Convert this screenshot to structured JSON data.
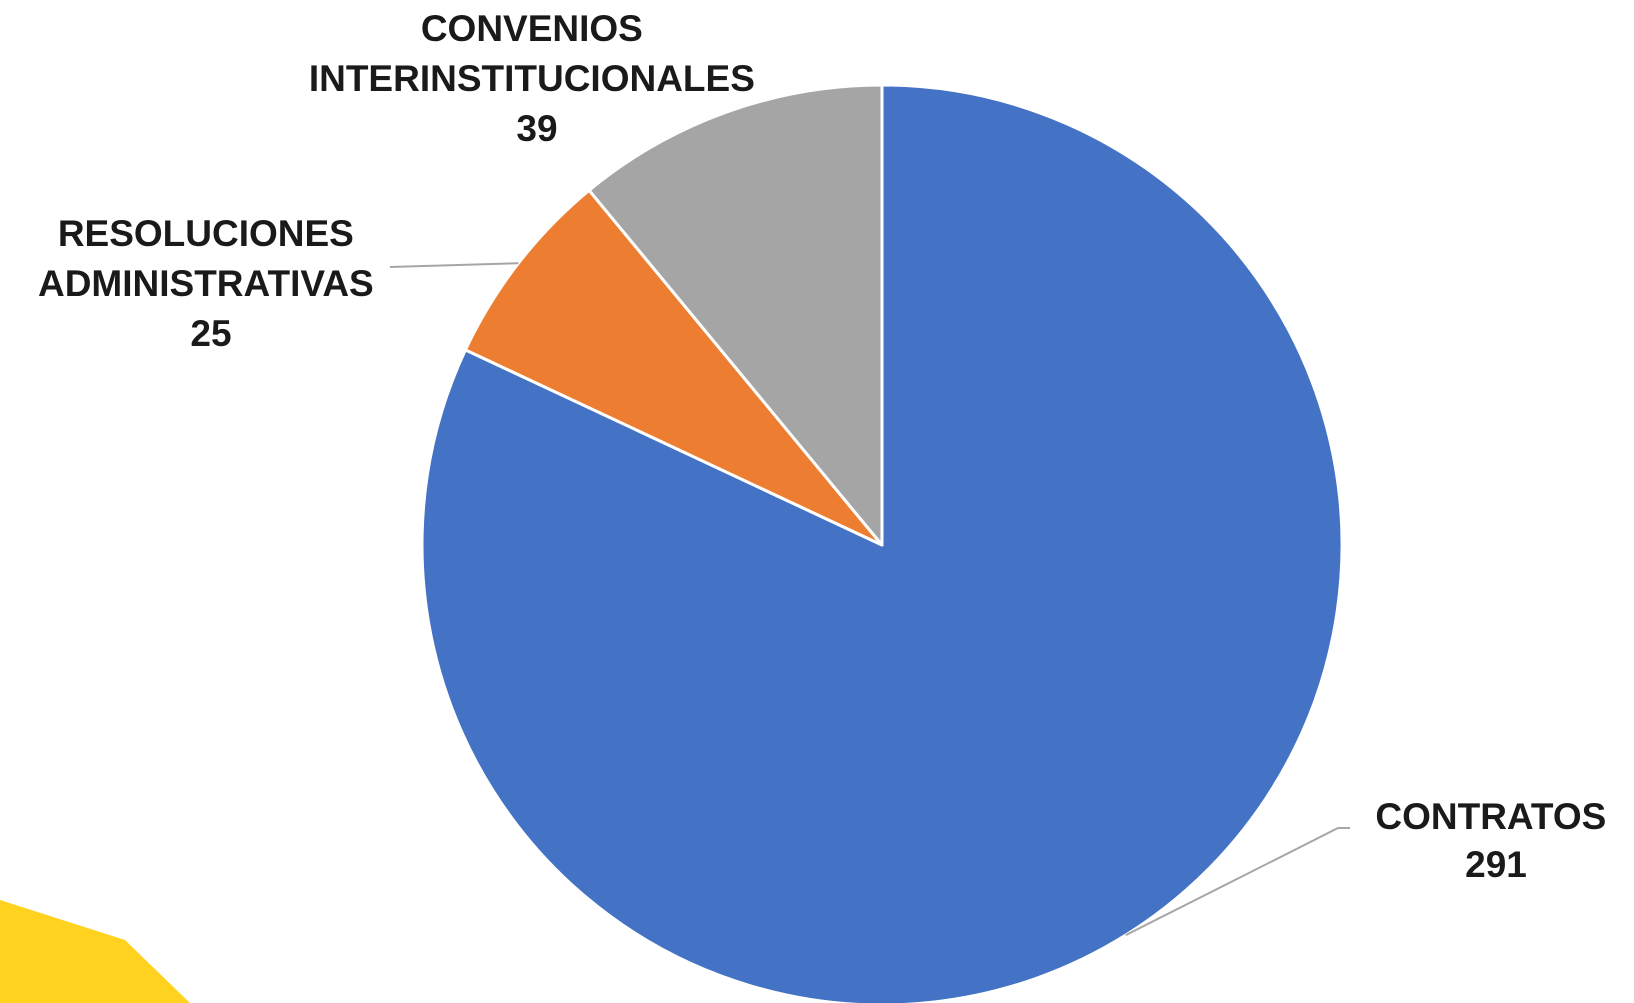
{
  "chart_data": {
    "type": "pie",
    "title": "",
    "slices": [
      {
        "label_lines": [
          "CONTRATOS"
        ],
        "value": 291,
        "value_text": "291",
        "color": "#4472C4"
      },
      {
        "label_lines": [
          "RESOLUCIONES",
          "ADMINISTRATIVAS"
        ],
        "value": 25,
        "value_text": "25",
        "color": "#ED7D31"
      },
      {
        "label_lines": [
          "CONVENIOS",
          "INTERINSTITUCIONALES"
        ],
        "value": 39,
        "value_text": "39",
        "color": "#A5A5A5"
      }
    ],
    "start_angle": "12 o'clock",
    "direction": "clockwise",
    "legend": "none",
    "leader_line_color": "#A6A6A6",
    "slice_border_color": "#FFFFFF"
  },
  "decoration": {
    "corner_accent_color": "#FFD21F"
  }
}
